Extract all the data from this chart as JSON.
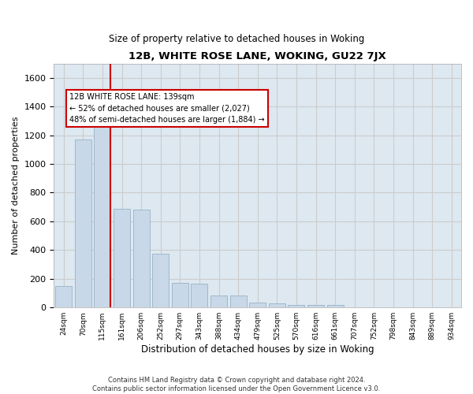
{
  "title": "12B, WHITE ROSE LANE, WOKING, GU22 7JX",
  "subtitle": "Size of property relative to detached houses in Woking",
  "xlabel": "Distribution of detached houses by size in Woking",
  "ylabel": "Number of detached properties",
  "bar_labels": [
    "24sqm",
    "70sqm",
    "115sqm",
    "161sqm",
    "206sqm",
    "252sqm",
    "297sqm",
    "343sqm",
    "388sqm",
    "434sqm",
    "479sqm",
    "525sqm",
    "570sqm",
    "616sqm",
    "661sqm",
    "707sqm",
    "752sqm",
    "798sqm",
    "843sqm",
    "889sqm",
    "934sqm"
  ],
  "bar_values": [
    148,
    1170,
    1260,
    690,
    680,
    375,
    170,
    165,
    82,
    82,
    35,
    30,
    20,
    20,
    15,
    0,
    0,
    0,
    0,
    0,
    0
  ],
  "bar_color": "#c8d8e8",
  "bar_edge_color": "#a0b8cc",
  "vline_color": "#cc0000",
  "annotation_text": "12B WHITE ROSE LANE: 139sqm\n← 52% of detached houses are smaller (2,027)\n48% of semi-detached houses are larger (1,884) →",
  "annotation_box_color": "#ffffff",
  "annotation_box_edge": "#cc0000",
  "ylim": [
    0,
    1700
  ],
  "yticks": [
    0,
    200,
    400,
    600,
    800,
    1000,
    1200,
    1400,
    1600
  ],
  "grid_color": "#cccccc",
  "background_color": "#dde8f0",
  "footer_line1": "Contains HM Land Registry data © Crown copyright and database right 2024.",
  "footer_line2": "Contains public sector information licensed under the Open Government Licence v3.0."
}
